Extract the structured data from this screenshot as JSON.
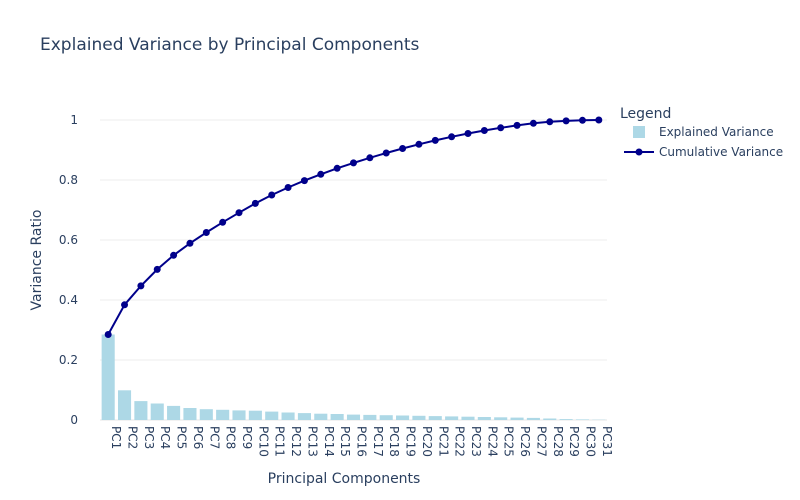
{
  "chart_data": {
    "type": "bar",
    "title": "Explained Variance by Principal Components",
    "xlabel": "Principal Components",
    "ylabel": "Variance Ratio",
    "ylim": [
      0,
      1.1
    ],
    "yticks": [
      0,
      0.2,
      0.4,
      0.6,
      0.8,
      1
    ],
    "ytick_labels": [
      "0",
      "0.2",
      "0.4",
      "0.6",
      "0.8",
      "1"
    ],
    "grid": true,
    "legend": {
      "title": "Legend",
      "placement": "right"
    },
    "categories": [
      "PC1",
      "PC2",
      "PC3",
      "PC4",
      "PC5",
      "PC6",
      "PC7",
      "PC8",
      "PC9",
      "PC10",
      "PC11",
      "PC12",
      "PC13",
      "PC14",
      "PC15",
      "PC16",
      "PC17",
      "PC18",
      "PC19",
      "PC20",
      "PC21",
      "PC22",
      "PC23",
      "PC24",
      "PC25",
      "PC26",
      "PC27",
      "PC28",
      "PC29",
      "PC30",
      "PC31"
    ],
    "series": [
      {
        "name": "Explained Variance",
        "type": "bar",
        "color": "#add8e6",
        "values": [
          0.285,
          0.099,
          0.063,
          0.055,
          0.047,
          0.04,
          0.036,
          0.034,
          0.032,
          0.031,
          0.028,
          0.025,
          0.023,
          0.021,
          0.02,
          0.018,
          0.017,
          0.016,
          0.015,
          0.014,
          0.013,
          0.012,
          0.011,
          0.01,
          0.009,
          0.008,
          0.007,
          0.005,
          0.003,
          0.002,
          0.001
        ]
      },
      {
        "name": "Cumulative Variance",
        "type": "line",
        "color": "#00008b",
        "values": [
          0.285,
          0.384,
          0.447,
          0.502,
          0.549,
          0.589,
          0.625,
          0.659,
          0.691,
          0.722,
          0.75,
          0.775,
          0.798,
          0.819,
          0.839,
          0.857,
          0.874,
          0.89,
          0.905,
          0.919,
          0.932,
          0.944,
          0.955,
          0.965,
          0.974,
          0.982,
          0.989,
          0.994,
          0.997,
          0.999,
          1.0
        ]
      }
    ]
  }
}
